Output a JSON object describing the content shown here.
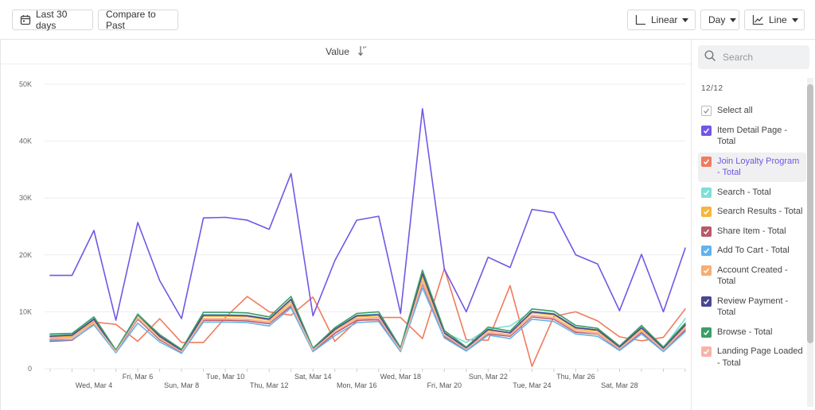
{
  "toolbar": {
    "date_range_label": "Last 30 days",
    "compare_label": "Compare to Past",
    "scale_label": "Linear",
    "interval_label": "Day",
    "chart_type_label": "Line"
  },
  "chart_header": {
    "value_label": "Value"
  },
  "legend": {
    "search_placeholder": "Search",
    "count": "12/12",
    "select_all_label": "Select all",
    "items": [
      {
        "label": "Item Detail Page - Total",
        "color": "#7356e6"
      },
      {
        "label": "Join Loyalty Program - Total",
        "color": "#f07b5d",
        "highlighted": true
      },
      {
        "label": "Search - Total",
        "color": "#7fded8"
      },
      {
        "label": "Search Results - Total",
        "color": "#f5b63a"
      },
      {
        "label": "Share Item - Total",
        "color": "#b85968"
      },
      {
        "label": "Add To Cart - Total",
        "color": "#63b2ea"
      },
      {
        "label": "Account Created - Total",
        "color": "#f6ae72"
      },
      {
        "label": "Review Payment - Total",
        "color": "#4a4693"
      },
      {
        "label": "Browse - Total",
        "color": "#3c9e66"
      },
      {
        "label": "Landing Page Loaded - Total",
        "color": "#f6b4a6"
      }
    ]
  },
  "chart_data": {
    "type": "line",
    "ylim": [
      0,
      50000
    ],
    "y_ticks": [
      0,
      10000,
      20000,
      30000,
      40000,
      50000
    ],
    "y_tick_labels": [
      "0",
      "10K",
      "20K",
      "30K",
      "40K",
      "50K"
    ],
    "x_tick_labels_row1": [
      "Fri, Mar 6",
      "Tue, Mar 10",
      "Sat, Mar 14",
      "Wed, Mar 18",
      "Sun, Mar 22",
      "Thu, Mar 26"
    ],
    "x_tick_labels_row2": [
      "Wed, Mar 4",
      "Sun, Mar 8",
      "Thu, Mar 12",
      "Mon, Mar 16",
      "Fri, Mar 20",
      "Tue, Mar 24",
      "Sat, Mar 28"
    ],
    "x": [
      "Mar 2",
      "Mar 3",
      "Mar 4",
      "Mar 5",
      "Mar 6",
      "Mar 7",
      "Mar 8",
      "Mar 9",
      "Mar 10",
      "Mar 11",
      "Mar 12",
      "Mar 13",
      "Mar 14",
      "Mar 15",
      "Mar 16",
      "Mar 17",
      "Mar 18",
      "Mar 19",
      "Mar 20",
      "Mar 21",
      "Mar 22",
      "Mar 23",
      "Mar 24",
      "Mar 25",
      "Mar 26",
      "Mar 27",
      "Mar 28",
      "Mar 29",
      "Mar 30",
      "Mar 31"
    ],
    "series": [
      {
        "name": "Item Detail Page - Total",
        "color": "#7356e6",
        "values": [
          16400,
          16400,
          24300,
          8500,
          25700,
          15500,
          8800,
          26500,
          26600,
          26100,
          24500,
          34300,
          9300,
          19000,
          26100,
          26800,
          9700,
          45700,
          17500,
          10000,
          19600,
          17800,
          28000,
          27400,
          20000,
          18400,
          10200,
          20100,
          10000,
          21200
        ]
      },
      {
        "name": "Join Loyalty Program - Total",
        "color": "#f07b5d",
        "values": [
          5200,
          5400,
          8200,
          7800,
          4800,
          8800,
          4600,
          4600,
          9000,
          12700,
          10000,
          9400,
          12600,
          4800,
          8400,
          9000,
          9000,
          5300,
          17600,
          5100,
          5000,
          14600,
          400,
          9200,
          10000,
          8400,
          5600,
          4900,
          5500,
          10500
        ]
      },
      {
        "name": "Search - Total",
        "color": "#7fded8",
        "values": [
          5900,
          6000,
          8800,
          3200,
          9700,
          5800,
          3300,
          9500,
          9500,
          9400,
          8800,
          12100,
          3600,
          7000,
          9400,
          9600,
          3600,
          16500,
          6400,
          4600,
          7000,
          7500,
          10100,
          9700,
          7300,
          6800,
          3900,
          7300,
          3700,
          8800
        ]
      },
      {
        "name": "Search Results - Total",
        "color": "#f5b63a",
        "values": [
          5600,
          5700,
          8500,
          3000,
          9400,
          5600,
          3100,
          9200,
          9200,
          9100,
          8500,
          11800,
          3400,
          6800,
          9100,
          9300,
          3400,
          16100,
          6200,
          3800,
          6700,
          6300,
          9800,
          9400,
          7000,
          6600,
          3700,
          7000,
          3500,
          7500
        ]
      },
      {
        "name": "Share Item - Total",
        "color": "#b85968",
        "values": [
          4800,
          5000,
          7800,
          2900,
          8700,
          5100,
          2900,
          8500,
          8500,
          8400,
          7900,
          11000,
          3100,
          6200,
          8500,
          8600,
          3100,
          14900,
          5700,
          3200,
          6100,
          5700,
          9100,
          8700,
          6400,
          6100,
          3400,
          6400,
          3200,
          6800
        ]
      },
      {
        "name": "Add To Cart - Total",
        "color": "#63b2ea",
        "values": [
          5000,
          5100,
          7700,
          2800,
          8000,
          4700,
          2700,
          8200,
          8200,
          8100,
          7500,
          10700,
          3000,
          5800,
          8100,
          8300,
          3000,
          14200,
          5400,
          3100,
          5900,
          5300,
          8700,
          8300,
          6100,
          5700,
          3200,
          6100,
          3000,
          6500
        ]
      },
      {
        "name": "Account Created - Total",
        "color": "#f6ae72",
        "values": [
          5400,
          5500,
          8000,
          3100,
          9000,
          5300,
          3000,
          8800,
          8800,
          8700,
          8200,
          11400,
          3300,
          6500,
          8800,
          9000,
          3300,
          15400,
          6000,
          3400,
          6400,
          6000,
          9400,
          9000,
          6700,
          6300,
          3500,
          6700,
          3300,
          7200
        ]
      },
      {
        "name": "Review Payment - Total",
        "color": "#4a4693",
        "values": [
          5700,
          5900,
          8700,
          3100,
          9500,
          5700,
          3200,
          9400,
          9400,
          9300,
          8700,
          12200,
          3500,
          6900,
          9300,
          9500,
          3500,
          16700,
          6300,
          3600,
          6900,
          6300,
          10000,
          9600,
          7200,
          6800,
          3800,
          7200,
          3600,
          7700
        ]
      },
      {
        "name": "Browse - Total",
        "color": "#3c9e66",
        "values": [
          6100,
          6200,
          9100,
          3300,
          9500,
          6000,
          3400,
          9900,
          9900,
          9800,
          9100,
          12700,
          3600,
          7200,
          9700,
          10000,
          3700,
          17300,
          6700,
          3800,
          7300,
          6600,
          10500,
          10100,
          7600,
          7100,
          4000,
          7600,
          3800,
          8000
        ]
      },
      {
        "name": "Landing Page Loaded - Total",
        "color": "#f6b4a6",
        "values": [
          5300,
          5400,
          8100,
          3000,
          8900,
          5300,
          3000,
          8700,
          8700,
          8600,
          8100,
          11300,
          3300,
          6500,
          8700,
          8900,
          3300,
          15200,
          5900,
          3400,
          6300,
          5900,
          9300,
          8900,
          6600,
          6200,
          3500,
          6600,
          3300,
          7100
        ]
      }
    ]
  }
}
